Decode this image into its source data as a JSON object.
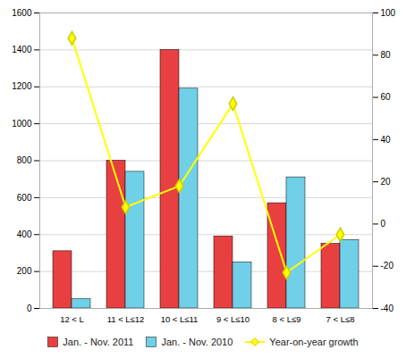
{
  "chart_data": {
    "type": "bar",
    "categories": [
      "12 < L",
      "11 < L≤12",
      "10 < L≤11",
      "9 < L≤10",
      "8 < L≤9",
      "7 < L≤8"
    ],
    "series": [
      {
        "name": "Jan. - Nov. 2011",
        "color": "#e84040",
        "values": [
          310,
          800,
          1400,
          390,
          570,
          350
        ]
      },
      {
        "name": "Jan. - Nov. 2010",
        "color": "#70d0e8",
        "values": [
          50,
          740,
          1190,
          250,
          710,
          370
        ]
      },
      {
        "name": "Year-on-year growth",
        "type": "line",
        "axis": "y2",
        "color": "#ffff00",
        "marker": "diamond",
        "values": [
          88,
          8,
          18,
          57,
          -23,
          -5
        ]
      }
    ],
    "ylim": [
      0,
      1600
    ],
    "yticks": [
      0,
      200,
      400,
      600,
      800,
      1000,
      1200,
      1400,
      1600
    ],
    "y2lim": [
      -40,
      100
    ],
    "y2ticks": [
      -40,
      -20,
      0,
      20,
      40,
      60,
      80,
      100
    ],
    "grid": true,
    "legend": "bottom"
  }
}
